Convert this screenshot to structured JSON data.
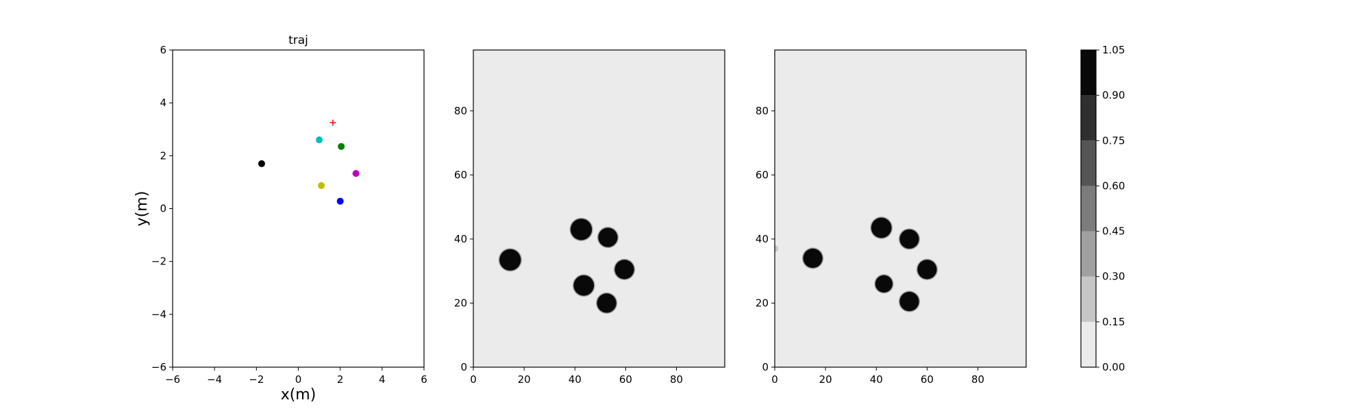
{
  "chart_data": [
    {
      "type": "scatter",
      "title": "traj",
      "xlabel": "x(m)",
      "ylabel": "y(m)",
      "xlim": [
        -6,
        6
      ],
      "ylim": [
        -6,
        6
      ],
      "xticks": [
        -6,
        -4,
        -2,
        0,
        2,
        4,
        6
      ],
      "yticks": [
        -6,
        -4,
        -2,
        0,
        2,
        4,
        6
      ],
      "grid": false,
      "points": [
        {
          "x": -1.75,
          "y": 1.7,
          "color": "#000000",
          "marker": "circle"
        },
        {
          "x": 1.0,
          "y": 2.6,
          "color": "#00bfbf",
          "marker": "circle"
        },
        {
          "x": 2.05,
          "y": 2.35,
          "color": "#008000",
          "marker": "circle"
        },
        {
          "x": 2.75,
          "y": 1.33,
          "color": "#bf00bf",
          "marker": "circle"
        },
        {
          "x": 1.1,
          "y": 0.87,
          "color": "#bfbf00",
          "marker": "circle"
        },
        {
          "x": 2.0,
          "y": 0.28,
          "color": "#0000ff",
          "marker": "circle"
        },
        {
          "x": 1.65,
          "y": 3.25,
          "color": "#ff0000",
          "marker": "plus"
        }
      ]
    },
    {
      "type": "heatmap",
      "xlim": [
        0,
        99
      ],
      "ylim": [
        0,
        99
      ],
      "xticks": [
        0,
        20,
        40,
        60,
        80
      ],
      "yticks": [
        0,
        20,
        40,
        60,
        80
      ],
      "background_value": 0.03,
      "blobs": [
        {
          "x": 14.5,
          "y": 33.5,
          "r": 4.2,
          "value": 1.0
        },
        {
          "x": 42.5,
          "y": 43.0,
          "r": 4.2,
          "value": 1.0
        },
        {
          "x": 53.0,
          "y": 40.5,
          "r": 3.8,
          "value": 1.0
        },
        {
          "x": 43.5,
          "y": 25.5,
          "r": 4.0,
          "value": 1.0
        },
        {
          "x": 59.5,
          "y": 30.5,
          "r": 3.8,
          "value": 1.0
        },
        {
          "x": 52.5,
          "y": 20.0,
          "r": 3.8,
          "value": 1.0
        }
      ]
    },
    {
      "type": "heatmap",
      "xlim": [
        0,
        99
      ],
      "ylim": [
        0,
        99
      ],
      "xticks": [
        0,
        20,
        40,
        60,
        80
      ],
      "yticks": [
        0,
        20,
        40,
        60,
        80
      ],
      "background_value": 0.03,
      "blobs": [
        {
          "x": 15.0,
          "y": 34.0,
          "r": 3.8,
          "value": 1.0
        },
        {
          "x": 42.0,
          "y": 43.5,
          "r": 4.0,
          "value": 1.0
        },
        {
          "x": 53.0,
          "y": 40.0,
          "r": 3.8,
          "value": 1.0
        },
        {
          "x": 43.0,
          "y": 26.0,
          "r": 3.4,
          "value": 1.0
        },
        {
          "x": 60.0,
          "y": 30.5,
          "r": 3.8,
          "value": 1.0
        },
        {
          "x": 53.0,
          "y": 20.5,
          "r": 3.8,
          "value": 1.0
        },
        {
          "x": 0.0,
          "y": 37.0,
          "r": 1.4,
          "value": 0.2
        }
      ]
    },
    {
      "type": "colorbar",
      "levels": [
        0.0,
        0.15,
        0.3,
        0.45,
        0.6,
        0.75,
        0.9,
        1.05
      ],
      "tick_labels": [
        "0.00",
        "0.15",
        "0.30",
        "0.45",
        "0.60",
        "0.75",
        "0.90",
        "1.05"
      ],
      "colors": [
        "#ebebeb",
        "#c6c6c6",
        "#a0a0a0",
        "#7c7c7c",
        "#555555",
        "#2f2f2f",
        "#090909"
      ]
    }
  ]
}
